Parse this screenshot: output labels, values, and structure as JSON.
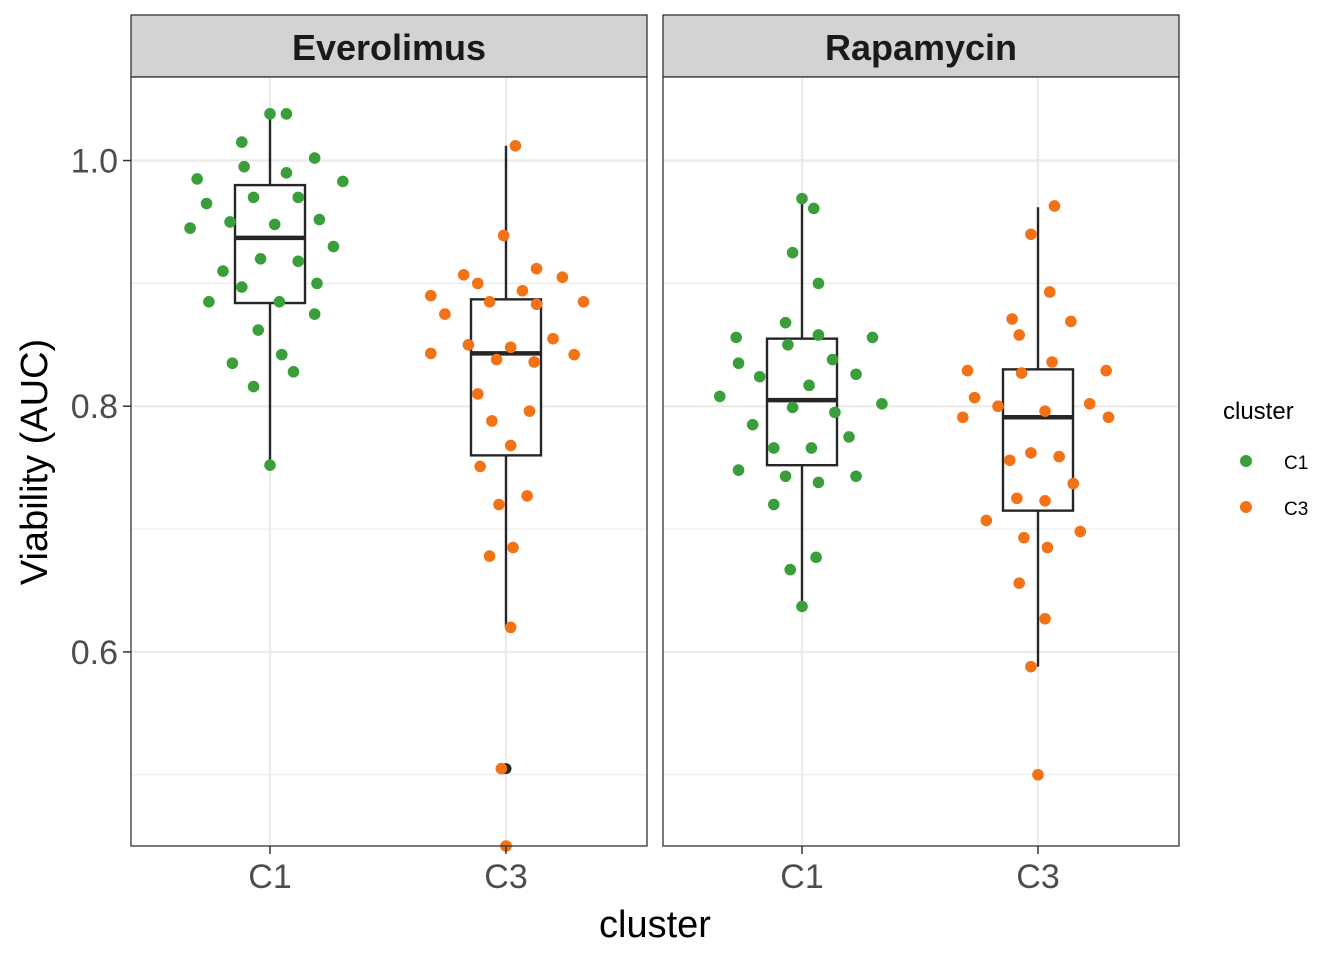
{
  "chart_data": {
    "type": "box-jitter",
    "facets": [
      "Everolimus",
      "Rapamycin"
    ],
    "categories": [
      "C1",
      "C3"
    ],
    "xlabel": "cluster",
    "ylabel": "Viability (AUC)",
    "ylim": [
      0.442,
      1.068
    ],
    "yticks": [
      0.6,
      0.8,
      1.0
    ],
    "ytick_labels": [
      "0.6",
      "0.8",
      "1.0"
    ],
    "y_minor_gridlines": [
      0.5,
      0.7,
      0.9
    ],
    "legend": {
      "title": "cluster",
      "placement": "right",
      "entries": [
        {
          "label": "C1",
          "color": "#3A9F3A"
        },
        {
          "label": "C3",
          "color": "#F47216"
        }
      ]
    },
    "colors": {
      "C1": "#3A9F3A",
      "C3": "#F47216",
      "box": "#262626",
      "strip": "#D3D3D3",
      "grid": "#EBEBEB"
    },
    "panels": [
      {
        "facet": "Everolimus",
        "boxes": [
          {
            "category": "C1",
            "min": 0.752,
            "q1": 0.884,
            "median": 0.937,
            "q3": 0.98,
            "max": 1.038,
            "outliers": []
          },
          {
            "category": "C3",
            "min": 0.62,
            "q1": 0.76,
            "median": 0.843,
            "q3": 0.887,
            "max": 1.012,
            "outliers": [
              0.505,
              0.442
            ]
          }
        ],
        "points": [
          {
            "category": "C1",
            "dx": 0.0,
            "y": 1.038
          },
          {
            "category": "C1",
            "dx": 0.07,
            "y": 1.038
          },
          {
            "category": "C1",
            "dx": -0.12,
            "y": 1.015
          },
          {
            "category": "C1",
            "dx": 0.19,
            "y": 1.002
          },
          {
            "category": "C1",
            "dx": -0.11,
            "y": 0.995
          },
          {
            "category": "C1",
            "dx": 0.07,
            "y": 0.99
          },
          {
            "category": "C1",
            "dx": -0.31,
            "y": 0.985
          },
          {
            "category": "C1",
            "dx": 0.31,
            "y": 0.983
          },
          {
            "category": "C1",
            "dx": -0.07,
            "y": 0.97
          },
          {
            "category": "C1",
            "dx": 0.12,
            "y": 0.97
          },
          {
            "category": "C1",
            "dx": -0.27,
            "y": 0.965
          },
          {
            "category": "C1",
            "dx": 0.21,
            "y": 0.952
          },
          {
            "category": "C1",
            "dx": -0.17,
            "y": 0.95
          },
          {
            "category": "C1",
            "dx": 0.02,
            "y": 0.948
          },
          {
            "category": "C1",
            "dx": -0.34,
            "y": 0.945
          },
          {
            "category": "C1",
            "dx": 0.27,
            "y": 0.93
          },
          {
            "category": "C1",
            "dx": -0.04,
            "y": 0.92
          },
          {
            "category": "C1",
            "dx": 0.12,
            "y": 0.918
          },
          {
            "category": "C1",
            "dx": -0.2,
            "y": 0.91
          },
          {
            "category": "C1",
            "dx": 0.2,
            "y": 0.9
          },
          {
            "category": "C1",
            "dx": -0.12,
            "y": 0.897
          },
          {
            "category": "C1",
            "dx": -0.26,
            "y": 0.885
          },
          {
            "category": "C1",
            "dx": 0.04,
            "y": 0.885
          },
          {
            "category": "C1",
            "dx": 0.19,
            "y": 0.875
          },
          {
            "category": "C1",
            "dx": -0.05,
            "y": 0.862
          },
          {
            "category": "C1",
            "dx": 0.05,
            "y": 0.842
          },
          {
            "category": "C1",
            "dx": -0.16,
            "y": 0.835
          },
          {
            "category": "C1",
            "dx": 0.1,
            "y": 0.828
          },
          {
            "category": "C1",
            "dx": -0.07,
            "y": 0.816
          },
          {
            "category": "C1",
            "dx": 0.0,
            "y": 0.752
          },
          {
            "category": "C3",
            "dx": 0.04,
            "y": 1.012
          },
          {
            "category": "C3",
            "dx": -0.01,
            "y": 0.939
          },
          {
            "category": "C3",
            "dx": 0.13,
            "y": 0.912
          },
          {
            "category": "C3",
            "dx": -0.18,
            "y": 0.907
          },
          {
            "category": "C3",
            "dx": 0.24,
            "y": 0.905
          },
          {
            "category": "C3",
            "dx": -0.12,
            "y": 0.9
          },
          {
            "category": "C3",
            "dx": 0.07,
            "y": 0.894
          },
          {
            "category": "C3",
            "dx": -0.32,
            "y": 0.89
          },
          {
            "category": "C3",
            "dx": -0.07,
            "y": 0.885
          },
          {
            "category": "C3",
            "dx": 0.13,
            "y": 0.883
          },
          {
            "category": "C3",
            "dx": 0.33,
            "y": 0.885
          },
          {
            "category": "C3",
            "dx": -0.26,
            "y": 0.875
          },
          {
            "category": "C3",
            "dx": 0.2,
            "y": 0.855
          },
          {
            "category": "C3",
            "dx": -0.16,
            "y": 0.85
          },
          {
            "category": "C3",
            "dx": 0.02,
            "y": 0.848
          },
          {
            "category": "C3",
            "dx": -0.32,
            "y": 0.843
          },
          {
            "category": "C3",
            "dx": 0.29,
            "y": 0.842
          },
          {
            "category": "C3",
            "dx": -0.04,
            "y": 0.838
          },
          {
            "category": "C3",
            "dx": 0.12,
            "y": 0.836
          },
          {
            "category": "C3",
            "dx": -0.12,
            "y": 0.81
          },
          {
            "category": "C3",
            "dx": 0.1,
            "y": 0.796
          },
          {
            "category": "C3",
            "dx": -0.06,
            "y": 0.788
          },
          {
            "category": "C3",
            "dx": 0.02,
            "y": 0.768
          },
          {
            "category": "C3",
            "dx": -0.11,
            "y": 0.751
          },
          {
            "category": "C3",
            "dx": 0.09,
            "y": 0.727
          },
          {
            "category": "C3",
            "dx": -0.03,
            "y": 0.72
          },
          {
            "category": "C3",
            "dx": 0.03,
            "y": 0.685
          },
          {
            "category": "C3",
            "dx": -0.07,
            "y": 0.678
          },
          {
            "category": "C3",
            "dx": 0.02,
            "y": 0.62
          },
          {
            "category": "C3",
            "dx": -0.02,
            "y": 0.505
          },
          {
            "category": "C3",
            "dx": 0.0,
            "y": 0.442
          }
        ]
      },
      {
        "facet": "Rapamycin",
        "boxes": [
          {
            "category": "C1",
            "min": 0.637,
            "q1": 0.752,
            "median": 0.805,
            "q3": 0.855,
            "max": 0.965,
            "outliers": []
          },
          {
            "category": "C3",
            "min": 0.588,
            "q1": 0.715,
            "median": 0.791,
            "q3": 0.83,
            "max": 0.962,
            "outliers": [
              0.5
            ]
          }
        ],
        "points": [
          {
            "category": "C1",
            "dx": 0.0,
            "y": 0.969
          },
          {
            "category": "C1",
            "dx": 0.05,
            "y": 0.961
          },
          {
            "category": "C1",
            "dx": -0.04,
            "y": 0.925
          },
          {
            "category": "C1",
            "dx": 0.07,
            "y": 0.9
          },
          {
            "category": "C1",
            "dx": -0.07,
            "y": 0.868
          },
          {
            "category": "C1",
            "dx": 0.07,
            "y": 0.858
          },
          {
            "category": "C1",
            "dx": -0.28,
            "y": 0.856
          },
          {
            "category": "C1",
            "dx": 0.3,
            "y": 0.856
          },
          {
            "category": "C1",
            "dx": -0.06,
            "y": 0.85
          },
          {
            "category": "C1",
            "dx": 0.13,
            "y": 0.838
          },
          {
            "category": "C1",
            "dx": -0.27,
            "y": 0.835
          },
          {
            "category": "C1",
            "dx": 0.23,
            "y": 0.826
          },
          {
            "category": "C1",
            "dx": -0.18,
            "y": 0.824
          },
          {
            "category": "C1",
            "dx": 0.03,
            "y": 0.817
          },
          {
            "category": "C1",
            "dx": -0.35,
            "y": 0.808
          },
          {
            "category": "C1",
            "dx": 0.34,
            "y": 0.802
          },
          {
            "category": "C1",
            "dx": -0.04,
            "y": 0.799
          },
          {
            "category": "C1",
            "dx": 0.14,
            "y": 0.795
          },
          {
            "category": "C1",
            "dx": -0.21,
            "y": 0.785
          },
          {
            "category": "C1",
            "dx": 0.2,
            "y": 0.775
          },
          {
            "category": "C1",
            "dx": -0.12,
            "y": 0.766
          },
          {
            "category": "C1",
            "dx": 0.04,
            "y": 0.766
          },
          {
            "category": "C1",
            "dx": -0.27,
            "y": 0.748
          },
          {
            "category": "C1",
            "dx": 0.23,
            "y": 0.743
          },
          {
            "category": "C1",
            "dx": -0.07,
            "y": 0.743
          },
          {
            "category": "C1",
            "dx": 0.07,
            "y": 0.738
          },
          {
            "category": "C1",
            "dx": -0.12,
            "y": 0.72
          },
          {
            "category": "C1",
            "dx": 0.06,
            "y": 0.677
          },
          {
            "category": "C1",
            "dx": -0.05,
            "y": 0.667
          },
          {
            "category": "C1",
            "dx": 0.0,
            "y": 0.637
          },
          {
            "category": "C3",
            "dx": 0.07,
            "y": 0.963
          },
          {
            "category": "C3",
            "dx": -0.03,
            "y": 0.94
          },
          {
            "category": "C3",
            "dx": 0.05,
            "y": 0.893
          },
          {
            "category": "C3",
            "dx": -0.11,
            "y": 0.871
          },
          {
            "category": "C3",
            "dx": 0.14,
            "y": 0.869
          },
          {
            "category": "C3",
            "dx": -0.08,
            "y": 0.858
          },
          {
            "category": "C3",
            "dx": 0.06,
            "y": 0.836
          },
          {
            "category": "C3",
            "dx": -0.3,
            "y": 0.829
          },
          {
            "category": "C3",
            "dx": 0.29,
            "y": 0.829
          },
          {
            "category": "C3",
            "dx": -0.07,
            "y": 0.827
          },
          {
            "category": "C3",
            "dx": -0.27,
            "y": 0.807
          },
          {
            "category": "C3",
            "dx": 0.22,
            "y": 0.802
          },
          {
            "category": "C3",
            "dx": -0.17,
            "y": 0.8
          },
          {
            "category": "C3",
            "dx": 0.03,
            "y": 0.796
          },
          {
            "category": "C3",
            "dx": -0.32,
            "y": 0.791
          },
          {
            "category": "C3",
            "dx": 0.3,
            "y": 0.791
          },
          {
            "category": "C3",
            "dx": -0.03,
            "y": 0.762
          },
          {
            "category": "C3",
            "dx": 0.09,
            "y": 0.759
          },
          {
            "category": "C3",
            "dx": -0.12,
            "y": 0.756
          },
          {
            "category": "C3",
            "dx": 0.15,
            "y": 0.737
          },
          {
            "category": "C3",
            "dx": -0.09,
            "y": 0.725
          },
          {
            "category": "C3",
            "dx": 0.03,
            "y": 0.723
          },
          {
            "category": "C3",
            "dx": -0.22,
            "y": 0.707
          },
          {
            "category": "C3",
            "dx": 0.18,
            "y": 0.698
          },
          {
            "category": "C3",
            "dx": -0.06,
            "y": 0.693
          },
          {
            "category": "C3",
            "dx": 0.04,
            "y": 0.685
          },
          {
            "category": "C3",
            "dx": -0.08,
            "y": 0.656
          },
          {
            "category": "C3",
            "dx": 0.03,
            "y": 0.627
          },
          {
            "category": "C3",
            "dx": -0.03,
            "y": 0.588
          },
          {
            "category": "C3",
            "dx": 0.0,
            "y": 0.5
          }
        ]
      }
    ]
  }
}
